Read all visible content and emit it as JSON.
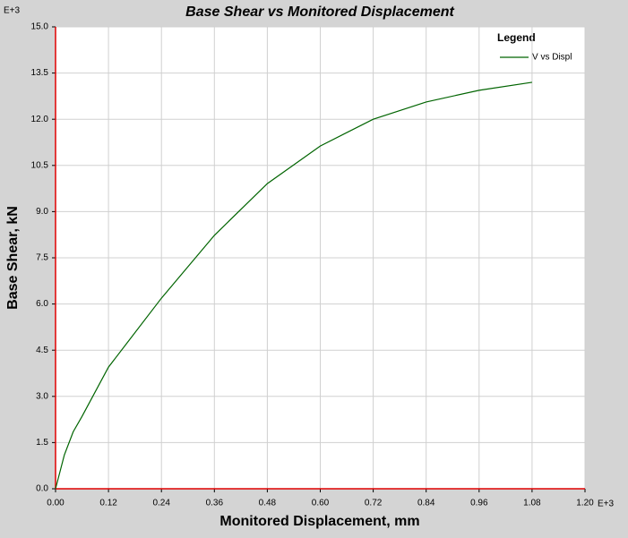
{
  "chart_data": {
    "type": "line",
    "title": "Base Shear vs Monitored Displacement",
    "x_label": "Monitored Displacement, mm",
    "y_label": "Base Shear, kN",
    "x_multiplier": "E+3",
    "y_multiplier": "E+3",
    "legend_title": "Legend",
    "legend_position": "top-right",
    "grid": true,
    "x": [
      0,
      0.02,
      0.04,
      0.06,
      0.12,
      0.24,
      0.36,
      0.48,
      0.6,
      0.72,
      0.84,
      0.96,
      1.08
    ],
    "series": [
      {
        "name": "V vs Displ",
        "color": "#006400",
        "values": [
          0,
          1.1,
          1.85,
          2.35,
          3.95,
          6.19,
          8.23,
          9.91,
          11.13,
          12.0,
          12.56,
          12.94,
          13.2
        ]
      }
    ],
    "xlim": [
      0,
      1.2
    ],
    "ylim": [
      0,
      15
    ],
    "xticks": [
      {
        "value": 0,
        "label": "0.00"
      },
      {
        "value": 0.12,
        "label": "0.12"
      },
      {
        "value": 0.24,
        "label": "0.24"
      },
      {
        "value": 0.36,
        "label": "0.36"
      },
      {
        "value": 0.48,
        "label": "0.48"
      },
      {
        "value": 0.6,
        "label": "0.60"
      },
      {
        "value": 0.72,
        "label": "0.72"
      },
      {
        "value": 0.84,
        "label": "0.84"
      },
      {
        "value": 0.96,
        "label": "0.96"
      },
      {
        "value": 1.08,
        "label": "1.08"
      },
      {
        "value": 1.2,
        "label": "1.20"
      }
    ],
    "yticks": [
      {
        "value": 0,
        "label": "0.0"
      },
      {
        "value": 1.5,
        "label": "1.5"
      },
      {
        "value": 3,
        "label": "3.0"
      },
      {
        "value": 4.5,
        "label": "4.5"
      },
      {
        "value": 6,
        "label": "6.0"
      },
      {
        "value": 7.5,
        "label": "7.5"
      },
      {
        "value": 9,
        "label": "9.0"
      },
      {
        "value": 10.5,
        "label": "10.5"
      },
      {
        "value": 12,
        "label": "12.0"
      },
      {
        "value": 13.5,
        "label": "13.5"
      },
      {
        "value": 15,
        "label": "15.0"
      }
    ]
  }
}
